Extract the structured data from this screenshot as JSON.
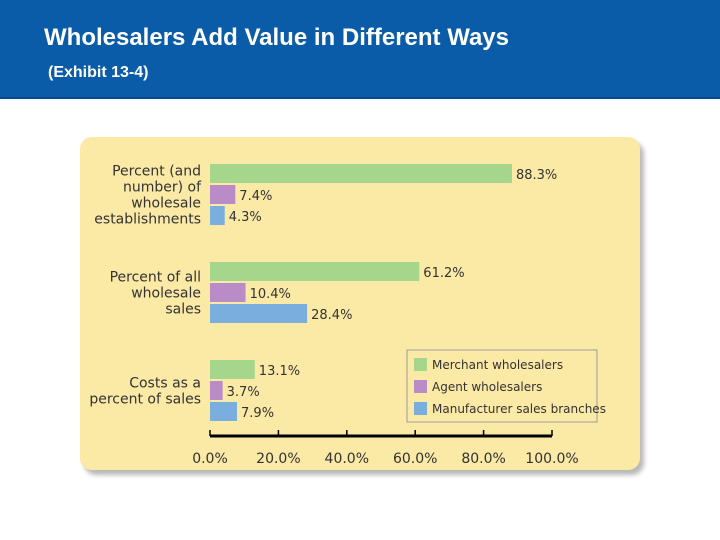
{
  "slide": {
    "title": "Wholesalers Add Value in Different Ways",
    "subtitle": "(Exhibit 13-4)"
  },
  "colors": {
    "header_bg": "#0b5ca8",
    "panel_bg": "#fbe9a6",
    "merchant": "#a6d68c",
    "agent": "#b98bc7",
    "manufacturer": "#7aaedf"
  },
  "chart_data": {
    "type": "bar",
    "orientation": "horizontal",
    "categories": [
      [
        "Percent (and",
        "number) of",
        "wholesale",
        "establishments"
      ],
      [
        "Percent of all",
        "wholesale",
        "sales"
      ],
      [
        "Costs as a",
        "percent of sales"
      ]
    ],
    "series": [
      {
        "name": "Merchant wholesalers",
        "values": [
          88.3,
          61.2,
          13.1
        ],
        "labels": [
          "88.3%",
          "61.2%",
          "13.1%"
        ],
        "color": "#a6d68c"
      },
      {
        "name": "Agent wholesalers",
        "values": [
          7.4,
          10.4,
          3.7
        ],
        "labels": [
          "7.4%",
          "10.4%",
          "3.7%"
        ],
        "color": "#b98bc7"
      },
      {
        "name": "Manufacturer sales branches",
        "values": [
          4.3,
          28.4,
          7.9
        ],
        "labels": [
          "4.3%",
          "28.4%",
          "7.9%"
        ],
        "color": "#7aaedf"
      }
    ],
    "xlim": [
      0,
      100
    ],
    "xticks": [
      0,
      20,
      40,
      60,
      80,
      100
    ],
    "xtick_labels": [
      "0.0%",
      "20.0%",
      "40.0%",
      "60.0%",
      "80.0%",
      "100.0%"
    ],
    "legend": "bottom-right",
    "grid": false
  }
}
